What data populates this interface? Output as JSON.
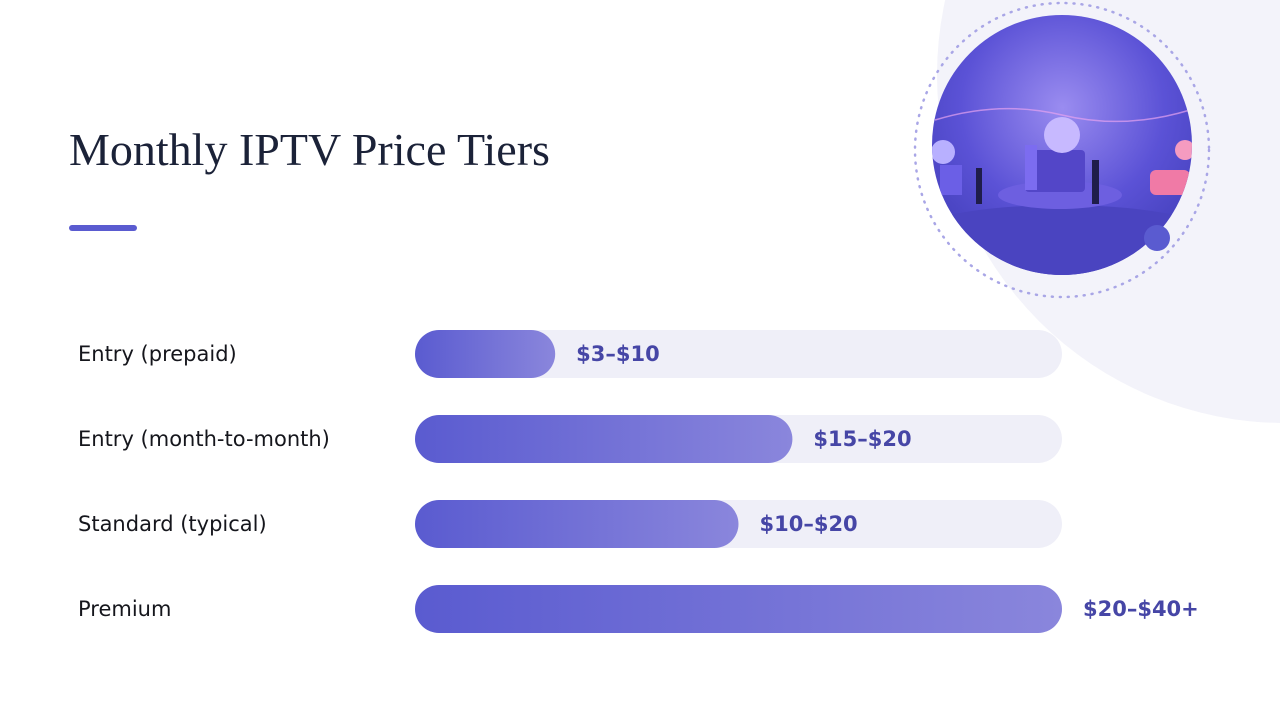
{
  "chart_data": {
    "type": "range-bar",
    "title": "Monthly IPTV Price Tiers",
    "categories": [
      "Entry (prepaid)",
      "Entry (month-to-month)",
      "Standard (typical)",
      "Premium"
    ],
    "low": [
      3,
      15,
      10,
      20
    ],
    "high": [
      10,
      20,
      20,
      40
    ],
    "value_labels": [
      "$3–$10",
      "$15–$20",
      "$10–$20",
      "$20–$40+"
    ],
    "xlim": [
      0,
      30
    ],
    "color": "#5a5bd0"
  }
}
